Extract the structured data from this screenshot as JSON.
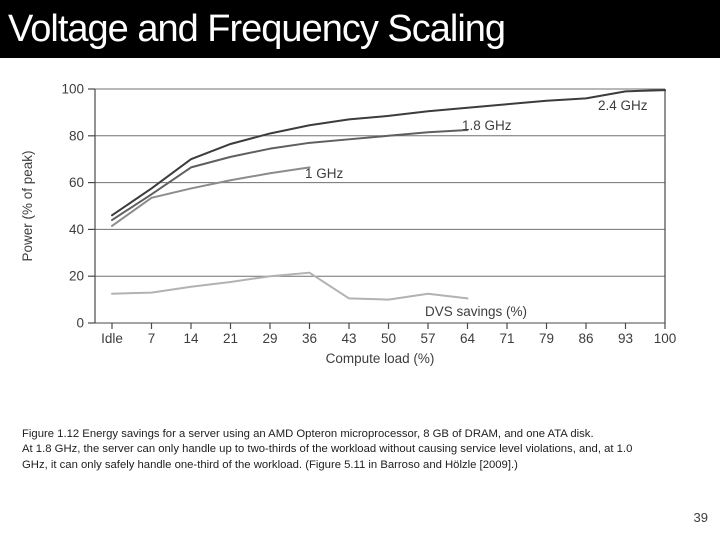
{
  "slide": {
    "title": "Voltage and Frequency Scaling",
    "page_number": "39",
    "caption_lines": [
      "Figure 1.12 Energy savings for a server using an AMD Opteron microprocessor, 8 GB of DRAM, and one ATA disk.",
      "At 1.8 GHz, the server can only handle up to two-thirds of the workload without causing service level violations, and, at 1.0",
      "GHz, it can only safely handle one-third of the workload. (Figure 5.11 in Barroso and Hölzle [2009].)"
    ]
  },
  "colors": {
    "title_bar_bg": "#000000",
    "title_text": "#ffffff",
    "axis_line": "#4a4a4a",
    "gridline": "#707070",
    "label_text": "#3d3d3d"
  },
  "chart_data": {
    "type": "line",
    "title": "",
    "xlabel": "Compute load (%)",
    "ylabel": "Power (% of peak)",
    "ylim": [
      0,
      100
    ],
    "yticks": [
      0,
      20,
      40,
      60,
      80,
      100
    ],
    "grid": true,
    "legend_position": "inline-labels",
    "categories": [
      "Idle",
      "7",
      "14",
      "21",
      "29",
      "36",
      "43",
      "50",
      "57",
      "64",
      "71",
      "79",
      "86",
      "93",
      "100"
    ],
    "series": [
      {
        "name": "2.4 GHz",
        "color": "#3c3c3c",
        "values": [
          46,
          57.5,
          70,
          76.5,
          81,
          84.5,
          87,
          88.5,
          90.5,
          92,
          93.5,
          95,
          96,
          99,
          99.5
        ]
      },
      {
        "name": "1.8 GHz",
        "color": "#5f5f5f",
        "values": [
          44,
          55,
          66.5,
          71,
          74.5,
          77,
          78.5,
          80,
          81.5,
          82.5
        ]
      },
      {
        "name": "1 GHz",
        "color": "#8c8c8c",
        "values": [
          41.5,
          53.5,
          57.5,
          61,
          64,
          66.5
        ]
      },
      {
        "name": "DVS savings (%)",
        "color": "#b2b2b2",
        "values": [
          12.5,
          13,
          15.5,
          17.5,
          20,
          21.5,
          10.5,
          10,
          12.5,
          10.5
        ]
      }
    ]
  }
}
